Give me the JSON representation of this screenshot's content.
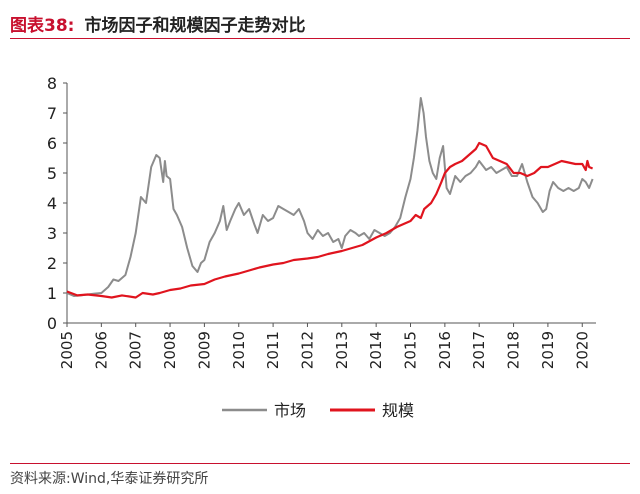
{
  "header": {
    "label": "图表38:",
    "title": "市场因子和规模因子走势对比"
  },
  "source": "资料来源:Wind,华泰证券研究所",
  "chart_data": {
    "type": "line",
    "xlim": [
      2005,
      2020.4
    ],
    "ylim": [
      0,
      8
    ],
    "yticks": [
      "0",
      "1",
      "2",
      "3",
      "4",
      "5",
      "6",
      "7",
      "8"
    ],
    "xticks": [
      "2005",
      "2006",
      "2007",
      "2008",
      "2009",
      "2010",
      "2011",
      "2012",
      "2013",
      "2014",
      "2015",
      "2016",
      "2017",
      "2018",
      "2019",
      "2020"
    ],
    "legend_position": "bottom-center",
    "series": [
      {
        "name": "市场",
        "color": "#8c8c8c",
        "x": [
          2005.0,
          2005.2,
          2005.4,
          2005.6,
          2005.8,
          2006.0,
          2006.2,
          2006.35,
          2006.5,
          2006.7,
          2006.85,
          2007.0,
          2007.15,
          2007.3,
          2007.45,
          2007.6,
          2007.7,
          2007.8,
          2007.85,
          2007.9,
          2008.0,
          2008.1,
          2008.2,
          2008.35,
          2008.5,
          2008.65,
          2008.8,
          2008.9,
          2009.0,
          2009.15,
          2009.3,
          2009.45,
          2009.55,
          2009.65,
          2009.75,
          2009.9,
          2010.0,
          2010.15,
          2010.3,
          2010.45,
          2010.55,
          2010.7,
          2010.85,
          2011.0,
          2011.15,
          2011.3,
          2011.45,
          2011.6,
          2011.75,
          2011.9,
          2012.0,
          2012.15,
          2012.3,
          2012.45,
          2012.6,
          2012.75,
          2012.9,
          2013.0,
          2013.1,
          2013.25,
          2013.4,
          2013.5,
          2013.65,
          2013.8,
          2013.95,
          2014.1,
          2014.25,
          2014.4,
          2014.55,
          2014.7,
          2014.85,
          2015.0,
          2015.1,
          2015.2,
          2015.3,
          2015.38,
          2015.45,
          2015.55,
          2015.65,
          2015.75,
          2015.85,
          2015.95,
          2016.05,
          2016.15,
          2016.3,
          2016.45,
          2016.6,
          2016.75,
          2016.9,
          2017.0,
          2017.2,
          2017.35,
          2017.5,
          2017.65,
          2017.8,
          2017.95,
          2018.1,
          2018.25,
          2018.4,
          2018.55,
          2018.7,
          2018.85,
          2018.95,
          2019.05,
          2019.15,
          2019.3,
          2019.45,
          2019.6,
          2019.75,
          2019.9,
          2020.0,
          2020.1,
          2020.2,
          2020.3
        ],
        "values": [
          1.0,
          0.9,
          0.92,
          0.95,
          0.98,
          1.0,
          1.2,
          1.45,
          1.4,
          1.6,
          2.2,
          3.0,
          4.2,
          4.0,
          5.2,
          5.6,
          5.5,
          4.7,
          5.4,
          4.9,
          4.8,
          3.8,
          3.6,
          3.2,
          2.5,
          1.9,
          1.7,
          2.0,
          2.1,
          2.7,
          3.0,
          3.4,
          3.9,
          3.1,
          3.4,
          3.8,
          4.0,
          3.6,
          3.8,
          3.3,
          3.0,
          3.6,
          3.4,
          3.5,
          3.9,
          3.8,
          3.7,
          3.6,
          3.8,
          3.4,
          3.0,
          2.8,
          3.1,
          2.9,
          3.0,
          2.7,
          2.8,
          2.5,
          2.9,
          3.1,
          3.0,
          2.9,
          3.0,
          2.8,
          3.1,
          3.0,
          2.9,
          3.0,
          3.2,
          3.5,
          4.2,
          4.8,
          5.5,
          6.4,
          7.5,
          7.0,
          6.2,
          5.4,
          5.0,
          4.8,
          5.5,
          5.9,
          4.5,
          4.3,
          4.9,
          4.7,
          4.9,
          5.0,
          5.2,
          5.4,
          5.1,
          5.2,
          5.0,
          5.1,
          5.2,
          4.9,
          4.9,
          5.3,
          4.7,
          4.2,
          4.0,
          3.7,
          3.8,
          4.4,
          4.7,
          4.5,
          4.4,
          4.5,
          4.4,
          4.5,
          4.8,
          4.7,
          4.5,
          4.8
        ]
      },
      {
        "name": "规模",
        "color": "#e0141e",
        "x": [
          2005.0,
          2005.3,
          2005.6,
          2006.0,
          2006.3,
          2006.6,
          2007.0,
          2007.2,
          2007.5,
          2007.7,
          2008.0,
          2008.3,
          2008.6,
          2009.0,
          2009.3,
          2009.6,
          2010.0,
          2010.3,
          2010.6,
          2011.0,
          2011.3,
          2011.6,
          2012.0,
          2012.3,
          2012.6,
          2013.0,
          2013.3,
          2013.6,
          2014.0,
          2014.3,
          2014.6,
          2014.8,
          2015.0,
          2015.15,
          2015.3,
          2015.4,
          2015.6,
          2015.75,
          2015.9,
          2016.0,
          2016.15,
          2016.3,
          2016.5,
          2016.7,
          2016.9,
          2017.0,
          2017.2,
          2017.4,
          2017.6,
          2017.8,
          2018.0,
          2018.2,
          2018.4,
          2018.6,
          2018.8,
          2019.0,
          2019.2,
          2019.4,
          2019.6,
          2019.8,
          2020.0,
          2020.1,
          2020.15,
          2020.2,
          2020.3
        ],
        "values": [
          1.05,
          0.92,
          0.95,
          0.9,
          0.85,
          0.92,
          0.85,
          1.0,
          0.95,
          1.0,
          1.1,
          1.15,
          1.25,
          1.3,
          1.45,
          1.55,
          1.65,
          1.75,
          1.85,
          1.95,
          2.0,
          2.1,
          2.15,
          2.2,
          2.3,
          2.4,
          2.5,
          2.6,
          2.85,
          3.0,
          3.2,
          3.3,
          3.4,
          3.6,
          3.5,
          3.8,
          4.0,
          4.3,
          4.7,
          5.0,
          5.2,
          5.3,
          5.4,
          5.6,
          5.8,
          6.0,
          5.9,
          5.5,
          5.4,
          5.3,
          5.0,
          5.0,
          4.9,
          5.0,
          5.2,
          5.2,
          5.3,
          5.4,
          5.35,
          5.3,
          5.3,
          5.1,
          5.4,
          5.2,
          5.15
        ]
      }
    ]
  }
}
